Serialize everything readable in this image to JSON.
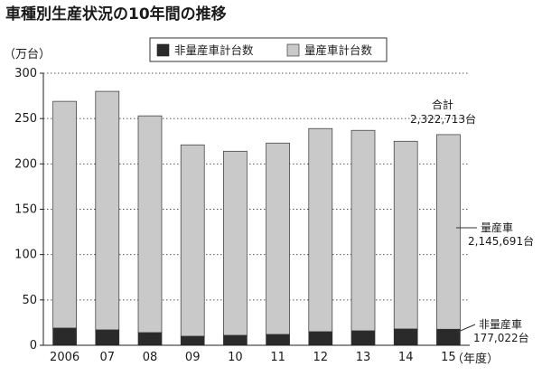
{
  "chart_data": {
    "type": "bar",
    "stacked": true,
    "title": "車種別生産状況の10年間の推移",
    "ylabel": "（万台）",
    "xlabel": "（年度）",
    "categories": [
      "2006",
      "07",
      "08",
      "09",
      "10",
      "11",
      "12",
      "13",
      "14",
      "15"
    ],
    "ylim": [
      0,
      300
    ],
    "yticks": [
      0,
      50,
      100,
      150,
      200,
      250,
      300
    ],
    "grid": true,
    "legend_position": "top",
    "series": [
      {
        "name": "非量産車計台数",
        "color": "#2a2a2a",
        "values": [
          19,
          17,
          14,
          10,
          11,
          12,
          15,
          16,
          18,
          17.7
        ]
      },
      {
        "name": "量産車計台数",
        "color": "#c9c9c9",
        "values": [
          250,
          263,
          239,
          211,
          203,
          211,
          224,
          221,
          207,
          214.6
        ]
      }
    ],
    "annotations": [
      {
        "label": "合計",
        "value": "2,322,713台"
      },
      {
        "label": "量産車",
        "value": "2,145,691台"
      },
      {
        "label": "非量産車",
        "value": "177,022台"
      }
    ]
  }
}
